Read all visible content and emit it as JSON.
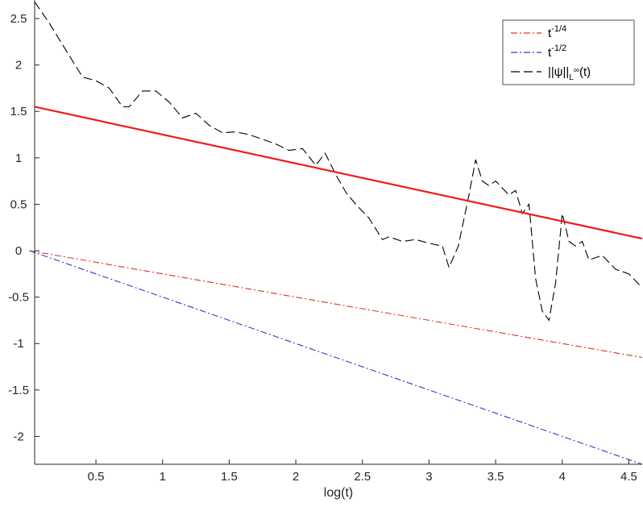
{
  "chart_data": {
    "type": "line",
    "xlabel": "log(t)",
    "ylabel": "",
    "xlim": [
      0.04,
      4.6
    ],
    "ylim": [
      -2.3,
      2.7
    ],
    "xticks": [
      "0.5",
      "1",
      "1.5",
      "2",
      "2.5",
      "3",
      "3.5",
      "4",
      "4.5"
    ],
    "yticks": [
      "-2",
      "-1.5",
      "-1",
      "-0.5",
      "0",
      "0.5",
      "1",
      "1.5",
      "2",
      "2.5"
    ],
    "legend_position": "top-right",
    "grid": false,
    "fit_line": {
      "color": "#ee1c1c",
      "x": [
        0.04,
        4.6
      ],
      "y": [
        1.55,
        0.13
      ]
    },
    "series": [
      {
        "name": "t^{-1/4}",
        "legend_base": "t",
        "legend_sup": "-1/4",
        "color": "#e2332b",
        "style": "dashdot",
        "x": [
          0.0,
          4.6
        ],
        "y": [
          0.0,
          -1.15
        ]
      },
      {
        "name": "t^{-1/2}",
        "legend_base": "t",
        "legend_sup": "-1/2",
        "color": "#3c35c8",
        "style": "dashdot",
        "x": [
          0.0,
          4.6
        ],
        "y": [
          0.0,
          -2.3
        ]
      },
      {
        "name": "||ψ||_{L∞}(t)",
        "legend_norm": "||ψ||",
        "legend_sub": "L",
        "legend_subsup": "∞",
        "legend_tail": "(t)",
        "color": "#000000",
        "style": "dashed",
        "x": [
          0.04,
          0.15,
          0.3,
          0.4,
          0.5,
          0.6,
          0.7,
          0.75,
          0.85,
          0.95,
          1.05,
          1.15,
          1.25,
          1.35,
          1.45,
          1.55,
          1.65,
          1.75,
          1.85,
          1.95,
          2.05,
          2.15,
          2.22,
          2.3,
          2.38,
          2.45,
          2.55,
          2.65,
          2.7,
          2.8,
          2.9,
          3.0,
          3.1,
          3.15,
          3.22,
          3.3,
          3.35,
          3.4,
          3.45,
          3.5,
          3.6,
          3.65,
          3.7,
          3.75,
          3.8,
          3.85,
          3.9,
          3.95,
          4.0,
          4.05,
          4.1,
          4.15,
          4.2,
          4.3,
          4.4,
          4.5,
          4.6
        ],
        "y": [
          2.68,
          2.45,
          2.1,
          1.87,
          1.83,
          1.75,
          1.55,
          1.55,
          1.72,
          1.72,
          1.6,
          1.43,
          1.48,
          1.35,
          1.27,
          1.28,
          1.25,
          1.2,
          1.15,
          1.08,
          1.1,
          0.92,
          1.05,
          0.82,
          0.62,
          0.5,
          0.35,
          0.12,
          0.15,
          0.1,
          0.12,
          0.08,
          0.05,
          -0.18,
          0.05,
          0.6,
          0.98,
          0.75,
          0.7,
          0.75,
          0.6,
          0.65,
          0.4,
          0.5,
          -0.3,
          -0.65,
          -0.75,
          -0.35,
          0.4,
          0.1,
          0.05,
          0.1,
          -0.1,
          -0.05,
          -0.2,
          -0.25,
          -0.4
        ]
      }
    ]
  }
}
